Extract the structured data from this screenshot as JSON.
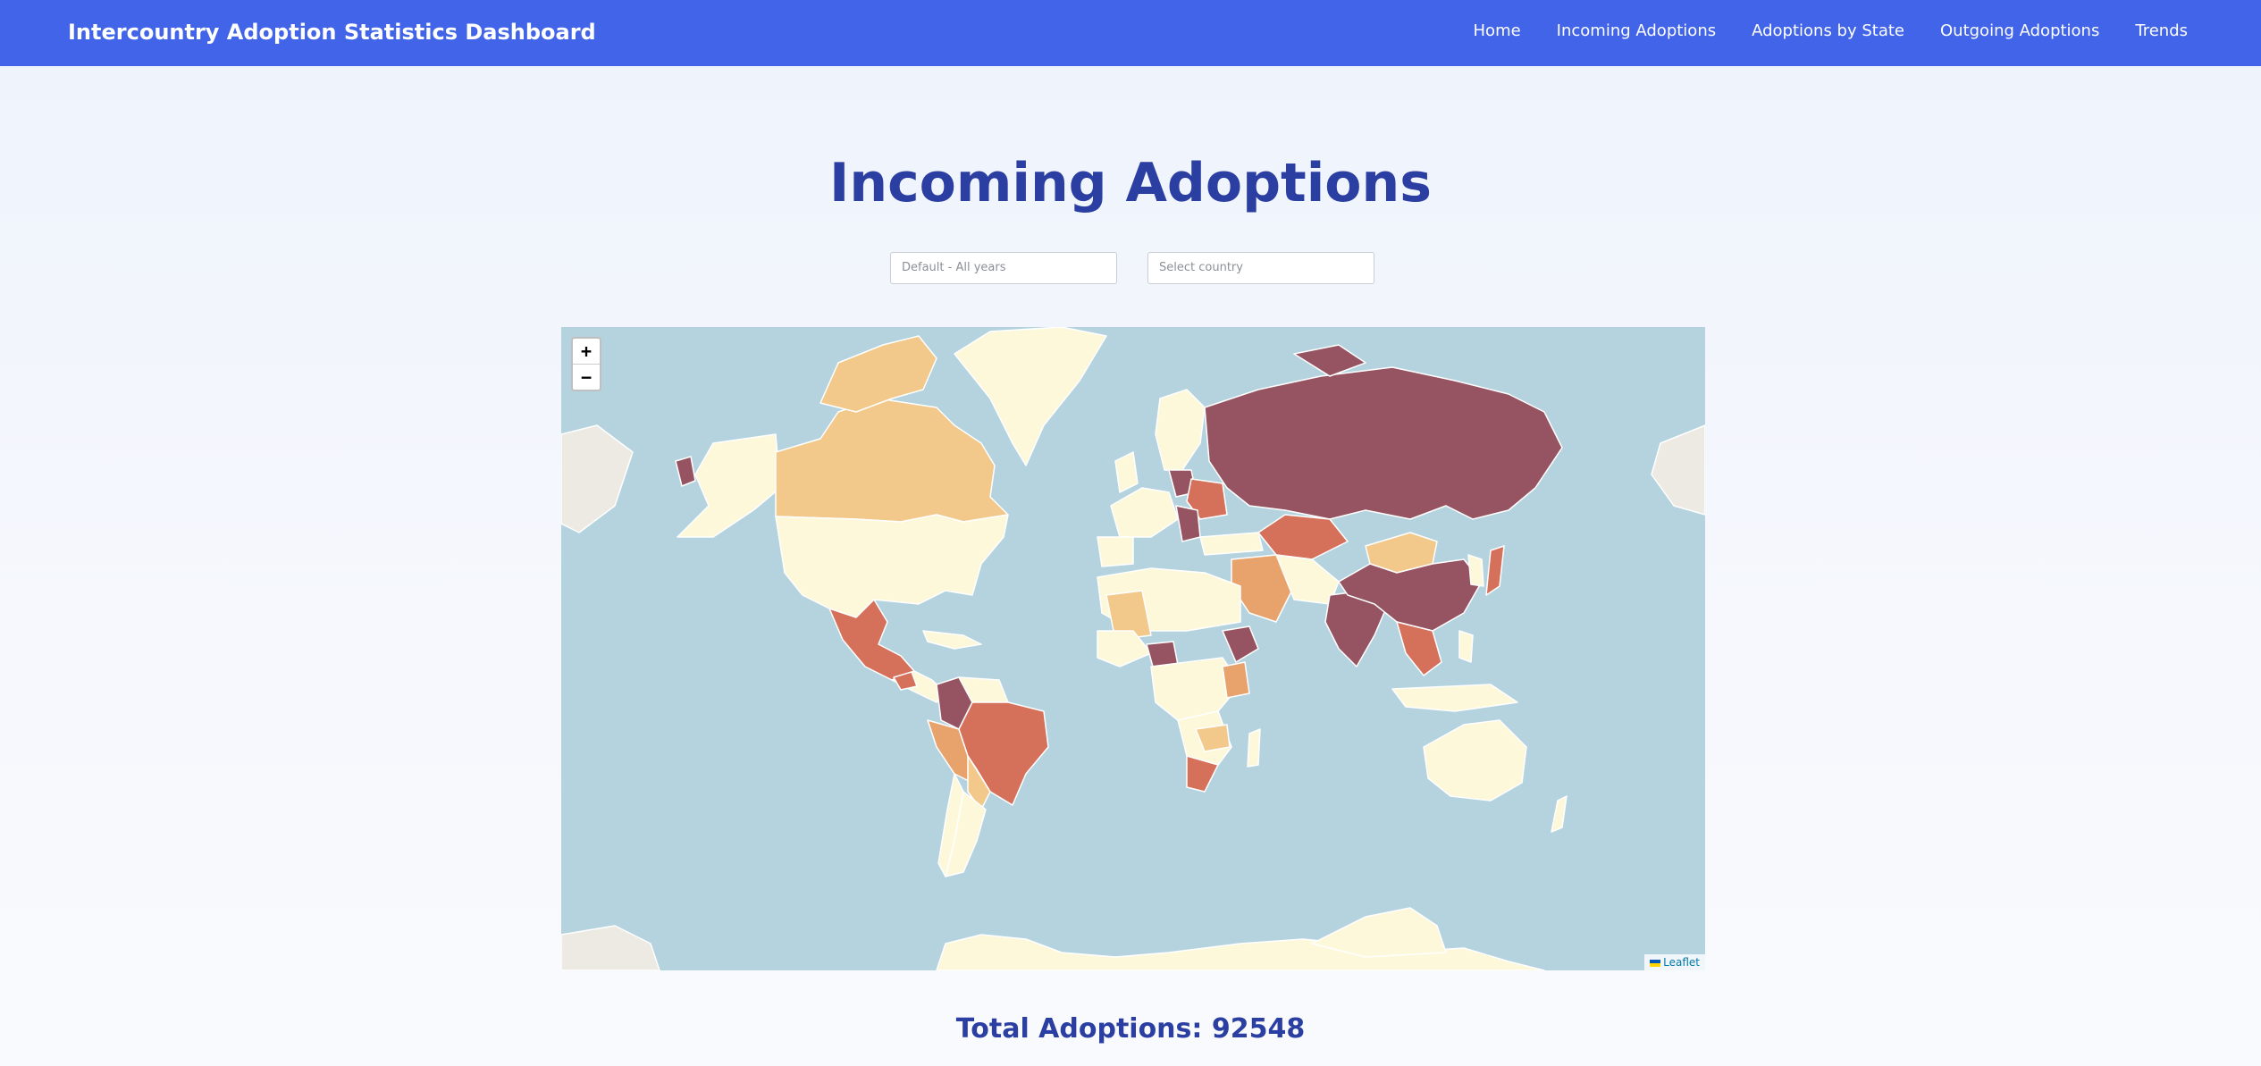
{
  "header": {
    "brand": "Intercountry Adoption Statistics Dashboard",
    "nav": [
      {
        "label": "Home"
      },
      {
        "label": "Incoming Adoptions"
      },
      {
        "label": "Adoptions by State"
      },
      {
        "label": "Outgoing Adoptions"
      },
      {
        "label": "Trends"
      }
    ]
  },
  "main": {
    "title": "Incoming Adoptions",
    "filters": {
      "year_placeholder": "Default - All years",
      "country_placeholder": "Select country"
    },
    "map": {
      "zoom_in": "+",
      "zoom_out": "−",
      "attribution": "Leaflet",
      "colors": {
        "ocean": "#b5d3de",
        "land_unshaded": "#eceae3",
        "lowest": "#fdf8d9",
        "low": "#f2c98b",
        "medium": "#e8a26c",
        "high": "#d5705a",
        "highest": "#965361"
      }
    },
    "total": "Total Adoptions: 92548"
  }
}
